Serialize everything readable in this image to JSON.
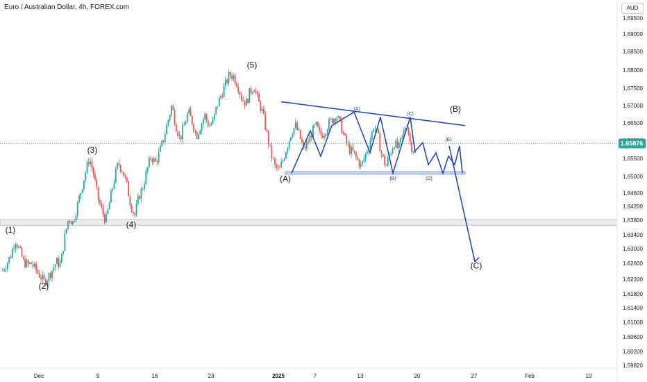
{
  "header": {
    "title": "Euro / Australian Dollar, 4h, FOREX.com",
    "currency": "AUD"
  },
  "chart_data": {
    "type": "candlestick",
    "symbol": "EURAUD",
    "timeframe": "4h",
    "ylim": [
      1.5964,
      1.7036
    ],
    "price_ticks": [
      "1.69500",
      "1.69000",
      "1.68500",
      "1.68000",
      "1.67500",
      "1.67000",
      "1.66500",
      "1.66000",
      "1.65500",
      "1.65000",
      "1.64600",
      "1.64200",
      "1.63800",
      "1.63400",
      "1.63000",
      "1.62600",
      "1.62200",
      "1.61800",
      "1.61400",
      "1.61000",
      "1.60600",
      "1.60200",
      "1.59820"
    ],
    "time_ticks": [
      {
        "label": "Dec",
        "bold": false
      },
      {
        "label": "9",
        "bold": false
      },
      {
        "label": "16",
        "bold": false
      },
      {
        "label": "23",
        "bold": false
      },
      {
        "label": "2025",
        "bold": true
      },
      {
        "label": "7",
        "bold": false
      },
      {
        "label": "13",
        "bold": false
      },
      {
        "label": "20",
        "bold": false
      },
      {
        "label": "27",
        "bold": false
      },
      {
        "label": "Feb",
        "bold": false
      },
      {
        "label": "10",
        "bold": false
      }
    ],
    "current_price": "1.65876",
    "current_price_value": 1.65876,
    "support_zone": [
      1.6347,
      1.6363
    ],
    "triangle_base_zone": [
      1.6497,
      1.6505
    ],
    "price_path": [
      1.6215,
      1.6235,
      1.626,
      1.6305,
      1.6275,
      1.624,
      1.623,
      1.6235,
      1.6215,
      1.62,
      1.618,
      1.6195,
      1.6215,
      1.624,
      1.623,
      1.631,
      1.637,
      1.6355,
      1.64,
      1.645,
      1.65,
      1.6545,
      1.65,
      1.643,
      1.639,
      1.636,
      1.642,
      1.648,
      1.653,
      1.651,
      1.647,
      1.641,
      1.6375,
      1.643,
      1.646,
      1.651,
      1.655,
      1.653,
      1.656,
      1.66,
      1.665,
      1.67,
      1.664,
      1.66,
      1.664,
      1.668,
      1.665,
      1.661,
      1.664,
      1.667,
      1.664,
      1.665,
      1.67,
      1.673,
      1.676,
      1.679,
      1.6785,
      1.676,
      1.672,
      1.6705,
      1.674,
      1.6755,
      1.671,
      1.668,
      1.662,
      1.656,
      1.652,
      1.6505,
      1.654,
      1.658,
      1.662,
      1.664,
      1.661,
      1.657,
      1.659,
      1.662,
      1.664,
      1.661,
      1.662,
      1.6645,
      1.666,
      1.667,
      1.664,
      1.66,
      1.657,
      1.656,
      1.654,
      1.652,
      1.6555,
      1.659,
      1.664,
      1.661,
      1.655,
      1.652,
      1.656,
      1.659,
      1.657,
      1.661,
      1.665,
      1.658,
      1.6565
    ],
    "wave_labels": [
      {
        "text": "(1)",
        "price": 1.6325
      },
      {
        "text": "(2)",
        "price": 1.616
      },
      {
        "text": "(3)",
        "price": 1.656
      },
      {
        "text": "(4)",
        "price": 1.634
      },
      {
        "text": "(5)",
        "price": 1.681
      },
      {
        "text": "(A)",
        "price": 1.6475
      },
      {
        "text": "(B)",
        "price": 1.668
      },
      {
        "text": "(C)",
        "price": 1.622
      }
    ],
    "triangle_labels": [
      {
        "text": "(A)",
        "price": 1.6685
      },
      {
        "text": "(B)",
        "price": 1.648
      },
      {
        "text": "(C)",
        "price": 1.667
      },
      {
        "text": "(D)",
        "price": 1.648
      },
      {
        "text": "(E)",
        "price": 1.6595
      }
    ],
    "projection_path": [
      1.6565,
      1.659,
      1.6525,
      1.656,
      1.65,
      1.655,
      1.6525,
      1.658,
      1.65,
      1.639,
      1.624
    ],
    "triangle_upper_line": [
      1.671,
      1.664
    ],
    "zigzag_path": [
      1.65,
      1.6625,
      1.655,
      1.664,
      1.668,
      1.656,
      1.6665,
      1.65,
      1.6665,
      1.656
    ]
  }
}
